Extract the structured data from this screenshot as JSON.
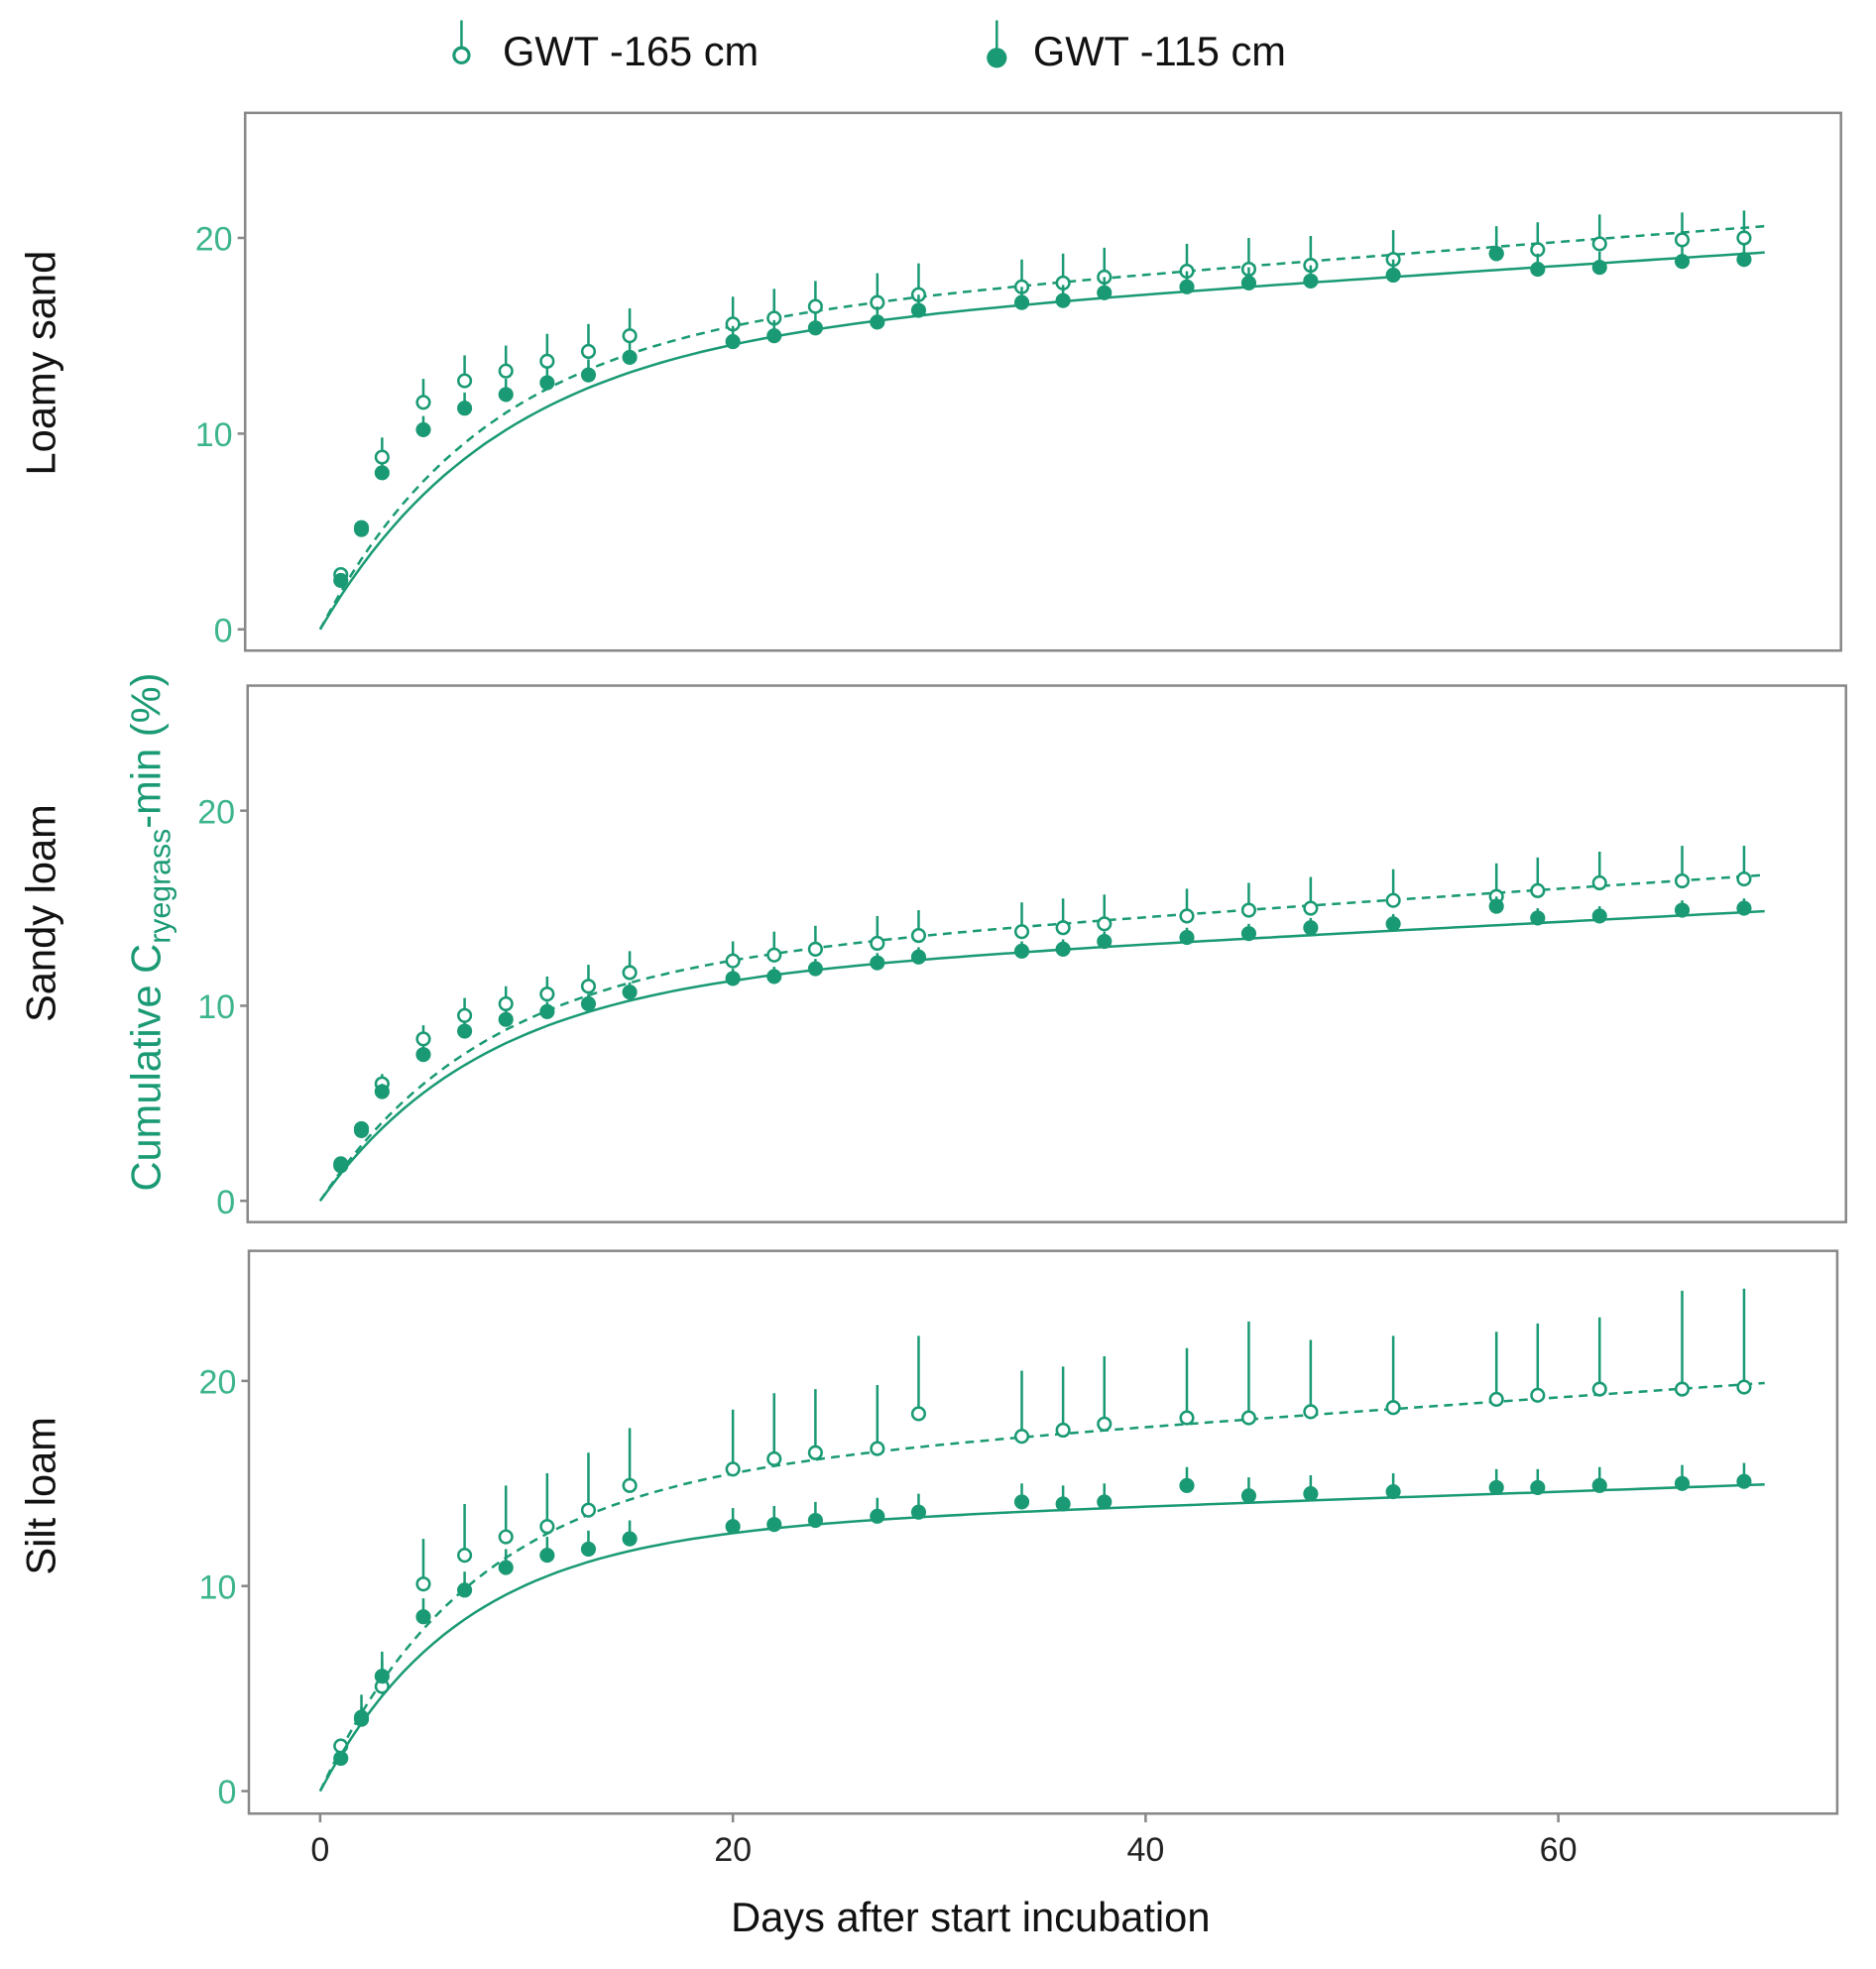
{
  "chart_data": {
    "type": "scatter",
    "title": "",
    "xlabel": "Days after start incubation",
    "ylabel": {
      "main": "Cumulative C",
      "sub": "ryegrass",
      "suffix": "-min (%)"
    },
    "xlim": [
      0,
      70
    ],
    "ylim": [
      0,
      25
    ],
    "xticks": [
      0,
      20,
      40,
      60
    ],
    "yticks": [
      0,
      10,
      20
    ],
    "grid": false,
    "legend": {
      "placement": "top-center",
      "entries": [
        {
          "label": "GWT -165 cm",
          "marker": "open-circle",
          "line": "dashed"
        },
        {
          "label": "GWT -115 cm",
          "marker": "filled-circle",
          "line": "solid"
        }
      ]
    },
    "color": "#1a9a74",
    "x": [
      1,
      2,
      3,
      5,
      7,
      9,
      11,
      13,
      15,
      20,
      22,
      24,
      27,
      29,
      34,
      36,
      38,
      42,
      45,
      48,
      52,
      57,
      59,
      62,
      66,
      69
    ],
    "panels": [
      {
        "name": "Loamy sand",
        "series": [
          {
            "name": "GWT -165 cm",
            "values": [
              2.8,
              5.2,
              8.8,
              11.6,
              12.7,
              13.2,
              13.7,
              14.2,
              15.0,
              15.6,
              15.9,
              16.5,
              16.7,
              17.1,
              17.5,
              17.7,
              18.0,
              18.3,
              18.4,
              18.6,
              18.9,
              19.2,
              19.4,
              19.7,
              19.9,
              20.0
            ],
            "error": [
              0.3,
              0.3,
              1.0,
              1.2,
              1.3,
              1.3,
              1.4,
              1.4,
              1.4,
              1.4,
              1.5,
              1.3,
              1.5,
              1.6,
              1.4,
              1.5,
              1.5,
              1.4,
              1.6,
              1.5,
              1.5,
              1.4,
              1.4,
              1.5,
              1.4,
              1.4
            ],
            "fit": {
              "model": "A*(1-exp(-k*t))+b*t",
              "A": 15,
              "k": 0.13,
              "b": 0.08
            }
          },
          {
            "name": "GWT -115 cm",
            "values": [
              2.5,
              5.1,
              8.0,
              10.2,
              11.3,
              12.0,
              12.6,
              13.0,
              13.9,
              14.7,
              15.0,
              15.4,
              15.7,
              16.3,
              16.7,
              16.8,
              17.2,
              17.5,
              17.7,
              17.8,
              18.1,
              19.2,
              18.4,
              18.5,
              18.8,
              18.9
            ],
            "error": [
              0.3,
              0.3,
              0.5,
              0.7,
              0.8,
              0.8,
              0.8,
              0.8,
              0.8,
              0.8,
              0.8,
              0.8,
              0.8,
              0.8,
              0.8,
              0.8,
              0.8,
              0.8,
              0.8,
              0.8,
              0.8,
              0.8,
              0.8,
              0.8,
              0.8,
              0.8
            ],
            "fit": {
              "model": "A*(1-exp(-k*t))+b*t",
              "A": 14.5,
              "k": 0.12,
              "b": 0.068
            }
          }
        ]
      },
      {
        "name": "Sandy loam",
        "series": [
          {
            "name": "GWT -165 cm",
            "values": [
              1.9,
              3.7,
              6.0,
              8.3,
              9.5,
              10.1,
              10.6,
              11.0,
              11.7,
              12.3,
              12.6,
              12.9,
              13.2,
              13.6,
              13.8,
              14.0,
              14.2,
              14.6,
              14.9,
              15.0,
              15.4,
              15.6,
              15.9,
              16.3,
              16.4,
              16.5
            ],
            "error": [
              0.3,
              0.3,
              0.5,
              0.7,
              0.9,
              0.9,
              0.9,
              1.1,
              1.1,
              1.0,
              1.2,
              1.2,
              1.4,
              1.3,
              1.5,
              1.5,
              1.5,
              1.4,
              1.4,
              1.6,
              1.6,
              1.7,
              1.7,
              1.6,
              1.8,
              1.7
            ],
            "fit": {
              "model": "A*(1-exp(-k*t))+b*t",
              "A": 11.8,
              "k": 0.13,
              "b": 0.07
            }
          },
          {
            "name": "GWT -115 cm",
            "values": [
              1.8,
              3.6,
              5.6,
              7.5,
              8.7,
              9.3,
              9.7,
              10.1,
              10.7,
              11.4,
              11.5,
              11.9,
              12.2,
              12.5,
              12.8,
              12.9,
              13.3,
              13.5,
              13.7,
              14.0,
              14.2,
              15.1,
              14.5,
              14.6,
              14.9,
              15.0
            ],
            "error": [
              0.3,
              0.3,
              0.4,
              0.5,
              0.5,
              0.5,
              0.5,
              0.5,
              0.5,
              0.5,
              0.5,
              0.5,
              0.5,
              0.5,
              0.5,
              0.5,
              0.5,
              0.5,
              0.5,
              0.5,
              0.5,
              0.5,
              0.5,
              0.5,
              0.5,
              0.5
            ],
            "fit": {
              "model": "A*(1-exp(-k*t))+b*t",
              "A": 11,
              "k": 0.13,
              "b": 0.055
            }
          }
        ]
      },
      {
        "name": "Silt loam",
        "series": [
          {
            "name": "GWT -165 cm",
            "values": [
              2.2,
              3.5,
              5.1,
              10.1,
              11.5,
              12.4,
              12.9,
              13.7,
              14.9,
              15.7,
              16.2,
              16.5,
              16.7,
              18.4,
              17.3,
              17.6,
              17.9,
              18.2,
              18.2,
              18.5,
              18.7,
              19.1,
              19.3,
              19.6,
              19.6,
              19.7
            ],
            "error": [
              0.3,
              1.2,
              1.7,
              2.2,
              2.5,
              2.5,
              2.6,
              2.8,
              2.8,
              2.9,
              3.2,
              3.1,
              3.1,
              3.8,
              3.2,
              3.1,
              3.3,
              3.4,
              4.7,
              3.5,
              3.5,
              3.3,
              3.5,
              3.5,
              4.8,
              4.8
            ],
            "fit": {
              "model": "A*(1-exp(-k*t))+b*t",
              "A": 15,
              "k": 0.14,
              "b": 0.07
            }
          },
          {
            "name": "GWT -115 cm",
            "values": [
              1.6,
              3.6,
              5.6,
              8.5,
              9.8,
              10.9,
              11.5,
              11.8,
              12.3,
              12.9,
              13.0,
              13.2,
              13.4,
              13.6,
              14.1,
              14.0,
              14.1,
              14.9,
              14.4,
              14.5,
              14.6,
              14.8,
              14.8,
              14.9,
              15.0,
              15.1
            ],
            "error": [
              0.3,
              0.5,
              0.8,
              0.9,
              0.9,
              0.9,
              0.9,
              0.9,
              0.9,
              0.9,
              0.9,
              0.9,
              0.9,
              0.9,
              0.9,
              0.9,
              0.9,
              0.9,
              0.9,
              0.9,
              0.9,
              0.9,
              0.9,
              0.9,
              0.9,
              0.9
            ],
            "fit": {
              "model": "A*(1-exp(-k*t))+b*t",
              "A": 12.5,
              "k": 0.15,
              "b": 0.035
            }
          }
        ]
      }
    ]
  }
}
